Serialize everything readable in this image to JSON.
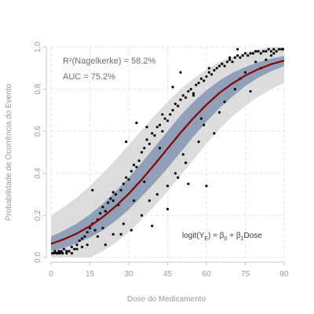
{
  "chart_data": {
    "type": "scatter",
    "xlabel": "Dose do Medicamento",
    "ylabel": "Probabilidade de Ocorrência do Evento",
    "xlim": [
      0,
      90
    ],
    "ylim": [
      0,
      1
    ],
    "x_ticks": [
      "0",
      "15",
      "30",
      "45",
      "60",
      "75",
      "90"
    ],
    "y_ticks": [
      "0.0",
      "0.2",
      "0.4",
      "0.6",
      "0.8",
      "1.0"
    ],
    "grid": true,
    "annotations": {
      "r2": "R²(Nagelkerke) = 58.2%",
      "auc": "AUC = 75.2%",
      "formula_lhs": "logit(Y",
      "formula_lhs_sub": "E",
      "formula_rhs": ") = β",
      "formula_b0_sub": "0",
      "formula_plus": " + β",
      "formula_b1_sub": "1",
      "formula_tail": "Dose"
    },
    "curve": {
      "name": "logistic fit",
      "color": "#8b0000",
      "x": [
        0,
        5,
        10,
        15,
        20,
        25,
        30,
        35,
        40,
        45,
        50,
        55,
        60,
        65,
        70,
        75,
        80,
        85,
        90
      ],
      "y": [
        0.065,
        0.087,
        0.114,
        0.149,
        0.192,
        0.244,
        0.303,
        0.37,
        0.443,
        0.518,
        0.593,
        0.663,
        0.726,
        0.782,
        0.827,
        0.865,
        0.895,
        0.919,
        0.936
      ]
    },
    "inner_band": {
      "color": "#8a9cb5",
      "x": [
        0,
        5,
        10,
        15,
        20,
        25,
        30,
        35,
        40,
        45,
        50,
        55,
        60,
        65,
        70,
        75,
        80,
        85,
        90
      ],
      "lower": [
        0.03,
        0.045,
        0.068,
        0.095,
        0.13,
        0.175,
        0.228,
        0.29,
        0.355,
        0.425,
        0.5,
        0.575,
        0.645,
        0.71,
        0.765,
        0.815,
        0.855,
        0.885,
        0.91
      ],
      "upper": [
        0.1,
        0.128,
        0.162,
        0.205,
        0.255,
        0.315,
        0.38,
        0.45,
        0.525,
        0.6,
        0.675,
        0.74,
        0.795,
        0.84,
        0.878,
        0.905,
        0.928,
        0.945,
        0.958
      ]
    },
    "outer_band": {
      "color": "#dcdcdc",
      "x": [
        0,
        5,
        10,
        15,
        20,
        25,
        30,
        35,
        40,
        45,
        50,
        55,
        60,
        65,
        70,
        75,
        80,
        85,
        90
      ],
      "lower": [
        0.0,
        0.0,
        0.0,
        0.0,
        0.03,
        0.07,
        0.12,
        0.18,
        0.245,
        0.315,
        0.39,
        0.465,
        0.54,
        0.61,
        0.67,
        0.72,
        0.765,
        0.8,
        0.83
      ],
      "upper": [
        0.2,
        0.24,
        0.285,
        0.34,
        0.4,
        0.465,
        0.535,
        0.605,
        0.675,
        0.74,
        0.8,
        0.85,
        0.895,
        0.93,
        0.955,
        0.975,
        0.99,
        1.0,
        1.0
      ]
    },
    "points": {
      "color": "#000000",
      "x": [
        0.5,
        1,
        1.5,
        2,
        2.5,
        3,
        3.5,
        4,
        4.5,
        5,
        6,
        7,
        8,
        9,
        10,
        11,
        12,
        13,
        14,
        15,
        16,
        17,
        18,
        19,
        20,
        21,
        22,
        23,
        24,
        25,
        26,
        27,
        28,
        29,
        30,
        31,
        32,
        33,
        34,
        35,
        36,
        37,
        38,
        39,
        40,
        41,
        42,
        43,
        44,
        45,
        46,
        47,
        48,
        49,
        50,
        51,
        52,
        53,
        54,
        55,
        56,
        57,
        58,
        59,
        60,
        61,
        62,
        63,
        64,
        65,
        66,
        67,
        68,
        69,
        70,
        71,
        72,
        73,
        74,
        75,
        76,
        77,
        78,
        79,
        80,
        81,
        82,
        83,
        84,
        85,
        86,
        87,
        88,
        89,
        89.5,
        8,
        12,
        16,
        18,
        21,
        24,
        27,
        29,
        31,
        33,
        35,
        37,
        39,
        41,
        43,
        45,
        47,
        49,
        51,
        53,
        55,
        57,
        59,
        61,
        63,
        65,
        67,
        69,
        71,
        73,
        75,
        77,
        79,
        81,
        83,
        85,
        87,
        60,
        45,
        32,
        28,
        20,
        14,
        6,
        52,
        38,
        66,
        72,
        58,
        42,
        48,
        24,
        10,
        3,
        86,
        79,
        50,
        36
      ],
      "y": [
        0.02,
        0.02,
        0.03,
        0.02,
        0.02,
        0.03,
        0.02,
        0.03,
        0.02,
        0.04,
        0.03,
        0.03,
        0.05,
        0.04,
        0.06,
        0.08,
        0.09,
        0.1,
        0.12,
        0.14,
        0.16,
        0.13,
        0.18,
        0.21,
        0.24,
        0.22,
        0.26,
        0.28,
        0.31,
        0.3,
        0.25,
        0.32,
        0.35,
        0.38,
        0.37,
        0.41,
        0.44,
        0.43,
        0.46,
        0.5,
        0.52,
        0.56,
        0.54,
        0.59,
        0.58,
        0.62,
        0.63,
        0.6,
        0.66,
        0.65,
        0.68,
        0.7,
        0.73,
        0.72,
        0.75,
        0.77,
        0.76,
        0.79,
        0.8,
        0.78,
        0.82,
        0.83,
        0.85,
        0.84,
        0.86,
        0.88,
        0.87,
        0.89,
        0.9,
        0.91,
        0.92,
        0.91,
        0.93,
        0.94,
        0.93,
        0.95,
        0.96,
        0.95,
        0.96,
        0.97,
        0.96,
        0.97,
        0.97,
        0.98,
        0.98,
        0.97,
        0.98,
        0.98,
        0.99,
        0.98,
        0.99,
        0.98,
        0.99,
        0.99,
        0.99,
        0.02,
        0.05,
        0.32,
        0.1,
        0.06,
        0.27,
        0.11,
        0.55,
        0.13,
        0.64,
        0.2,
        0.62,
        0.15,
        0.3,
        0.68,
        0.34,
        0.81,
        0.38,
        0.49,
        0.35,
        0.77,
        0.55,
        0.63,
        0.9,
        0.59,
        0.69,
        0.74,
        0.95,
        0.8,
        0.85,
        0.88,
        0.79,
        0.93,
        0.9,
        0.94,
        0.96,
        0.98,
        0.34,
        0.23,
        0.27,
        0.16,
        0.14,
        0.06,
        0.02,
        0.45,
        0.27,
        0.92,
        0.99,
        0.66,
        0.52,
        0.4,
        0.11,
        0.04,
        0.02,
        0.97,
        0.98,
        0.88,
        0.36
      ]
    }
  }
}
